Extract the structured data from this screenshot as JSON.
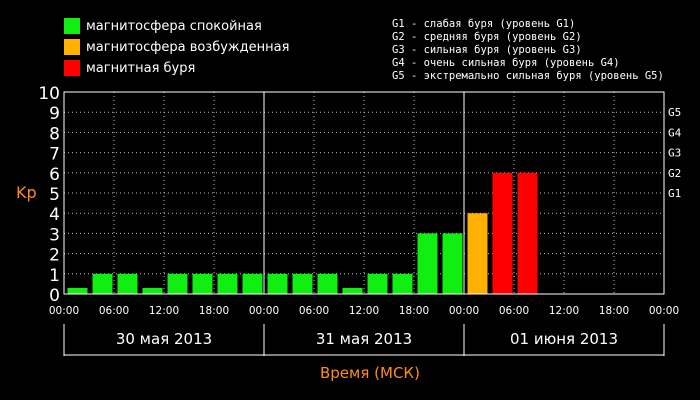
{
  "chart_data": {
    "type": "bar",
    "ylabel": "Kp",
    "xlabel": "Время (МСК)",
    "ylim": [
      0,
      10
    ],
    "yticks": [
      "0",
      "1",
      "2",
      "3",
      "4",
      "5",
      "6",
      "7",
      "8",
      "9",
      "10"
    ],
    "right_ticks": [
      {
        "label": "G1",
        "value": 5
      },
      {
        "label": "G2",
        "value": 6
      },
      {
        "label": "G3",
        "value": 7
      },
      {
        "label": "G4",
        "value": 8
      },
      {
        "label": "G5",
        "value": 9
      }
    ],
    "x_tick_labels": [
      "00:00",
      "06:00",
      "12:00",
      "18:00",
      "00:00",
      "06:00",
      "12:00",
      "18:00",
      "00:00",
      "06:00",
      "12:00",
      "18:00",
      "00:00"
    ],
    "days": [
      "30 мая 2013",
      "31 мая 2013",
      "01 июня 2013"
    ],
    "intervals_per_day": 8,
    "values": [
      0.3,
      1,
      1,
      0.3,
      1,
      1,
      1,
      1,
      1,
      1,
      1,
      0.3,
      1,
      1,
      3,
      3,
      4,
      6,
      6,
      null,
      null,
      null,
      null,
      null
    ],
    "grid": true,
    "colors": {
      "quiet": "#11ee11",
      "disturbed": "#ffb000",
      "storm": "#ff0000",
      "grid": "#bbbbbb",
      "axis_label": "#ff8c1a"
    }
  },
  "legend": [
    {
      "label": "магнитосфера спокойная",
      "color": "#11ee11"
    },
    {
      "label": "магнитосфера возбужденная",
      "color": "#ffb000"
    },
    {
      "label": "магнитная буря",
      "color": "#ff0000"
    }
  ],
  "storm_levels": [
    "G1 - слабая буря (уровень G1)",
    "G2 - средняя буря (уровень G2)",
    "G3 - сильная буря (уровень G3)",
    "G4 - очень сильная буря (уровень G4)",
    "G5 - экстремально сильная буря (уровень G5)"
  ]
}
